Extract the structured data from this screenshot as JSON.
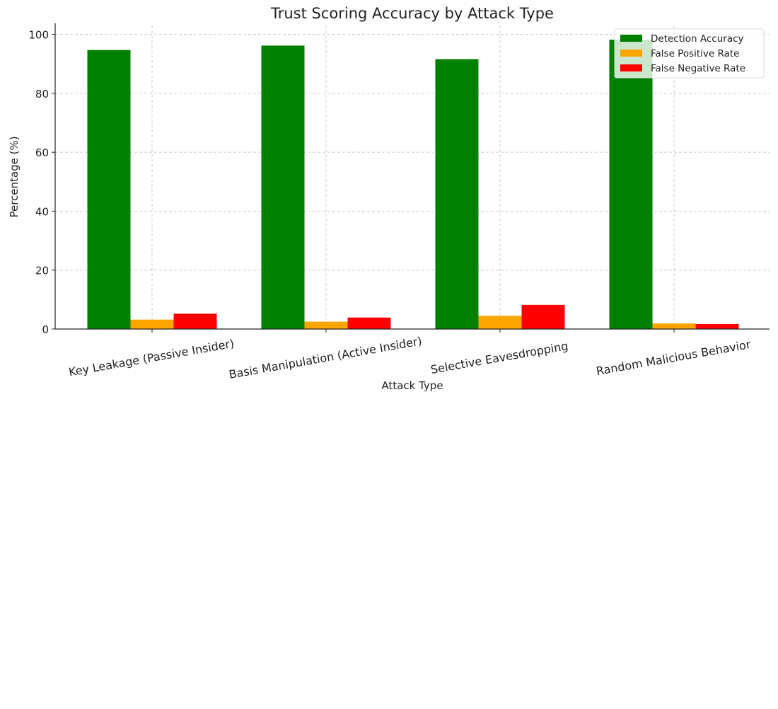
{
  "chart_data": {
    "type": "bar",
    "title": "Trust Scoring Accuracy by Attack Type",
    "xlabel": "Attack Type",
    "ylabel": "Percentage (%)",
    "ylim": [
      0,
      103
    ],
    "yticks": [
      0,
      20,
      40,
      60,
      80,
      100
    ],
    "grid": true,
    "legend_position": "top-right",
    "categories": [
      "Key Leakage (Passive Insider)",
      "Basis Manipulation (Active Insider)",
      "Selective Eavesdropping",
      "Random Malicious Behavior"
    ],
    "series": [
      {
        "name": "Detection Accuracy",
        "color": "#008000",
        "values": [
          94.7,
          96.2,
          91.6,
          98.2
        ]
      },
      {
        "name": "False Positive Rate",
        "color": "#FFA500",
        "values": [
          3.2,
          2.5,
          4.5,
          1.9
        ]
      },
      {
        "name": "False Negative Rate",
        "color": "#FF0000",
        "values": [
          5.2,
          3.9,
          8.2,
          1.7
        ]
      }
    ]
  }
}
